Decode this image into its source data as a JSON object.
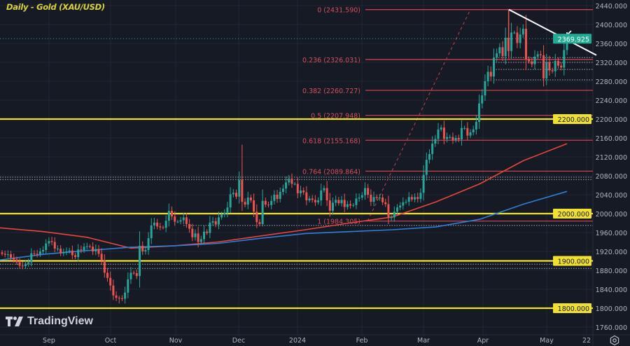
{
  "title": "Daily - Gold (XAU/USD)",
  "branding": {
    "logo_text": "TradingView"
  },
  "colors": {
    "background": "#161a25",
    "up": "#26a69a",
    "down": "#ef5350",
    "fib": "#c8404c",
    "support": "#f0e130",
    "ma_red": "#e8453c",
    "ma_blue": "#2f7fd6",
    "trendline": "#ffffff",
    "price_label": "#22ab94"
  },
  "chart_data": {
    "type": "candlestick",
    "symbol": "XAU/USD",
    "timeframe": "Daily",
    "ylim": [
      1740,
      2460
    ],
    "y_ticks": [
      "2440.000",
      "2400.000",
      "2360.000",
      "2320.000",
      "2280.000",
      "2240.000",
      "2200.000",
      "2160.000",
      "2120.000",
      "2080.000",
      "2040.000",
      "2000.000",
      "1960.000",
      "1920.000",
      "1880.000",
      "1840.000",
      "1800.000",
      "1760.000"
    ],
    "x_ticks": [
      "Sep",
      "Oct",
      "Nov",
      "Dec",
      "2024",
      "Feb",
      "Mar",
      "Apr",
      "May",
      "22"
    ],
    "closes": [
      1915,
      1913,
      1914,
      1907,
      1903,
      1897,
      1890,
      1889,
      1894,
      1897,
      1916,
      1915,
      1914,
      1920,
      1923,
      1937,
      1942,
      1940,
      1926,
      1926,
      1916,
      1919,
      1920,
      1922,
      1912,
      1908,
      1924,
      1923,
      1930,
      1931,
      1930,
      1920,
      1925,
      1915,
      1901,
      1875,
      1864,
      1848,
      1827,
      1822,
      1821,
      1820,
      1833,
      1861,
      1875,
      1874,
      1868,
      1932,
      1920,
      1923,
      1948,
      1975,
      1981,
      1973,
      1971,
      1970,
      1985,
      2006,
      1994,
      1983,
      1983,
      1986,
      1992,
      1978,
      1968,
      1950,
      1958,
      1940,
      1946,
      1962,
      1959,
      1981,
      1984,
      1977,
      1992,
      1998,
      2002,
      2013,
      2041,
      2044,
      2036,
      2071,
      2025,
      2019,
      2034,
      2028,
      2004,
      1982,
      1978,
      2027,
      2019,
      2018,
      2027,
      2040,
      2031,
      2046,
      2053,
      2066,
      2074,
      2063,
      2063,
      2043,
      2049,
      2045,
      2028,
      2032,
      2029,
      2024,
      2028,
      2049,
      2054,
      2028,
      2006,
      2023,
      2029,
      2022,
      2029,
      2014,
      2020,
      2017,
      2018,
      2032,
      2034,
      2039,
      2054,
      2040,
      2025,
      2035,
      2033,
      2034,
      2024,
      2020,
      1992,
      1992,
      2004,
      2013,
      2017,
      2024,
      2025,
      2035,
      2030,
      2035,
      2031,
      2044,
      2082,
      2114,
      2126,
      2148,
      2158,
      2178,
      2182,
      2158,
      2162,
      2162,
      2155,
      2160,
      2157,
      2181,
      2181,
      2165,
      2172,
      2178,
      2194,
      2233,
      2250,
      2280,
      2300,
      2290,
      2330,
      2339,
      2352,
      2333,
      2372,
      2344,
      2383,
      2383,
      2361,
      2379,
      2391,
      2327,
      2322,
      2316,
      2332,
      2337,
      2335,
      2286,
      2320,
      2303,
      2301,
      2323,
      2313,
      2309,
      2346,
      2369.925
    ],
    "wick_extremes": [
      {
        "index": 40,
        "low": 1810
      },
      {
        "index": 82,
        "high": 2146
      },
      {
        "index": 89,
        "low": 1973
      },
      {
        "index": 133,
        "low": 1984.305
      },
      {
        "index": 173,
        "high": 2431.59
      }
    ],
    "moving_averages": [
      {
        "color": "#e8453c",
        "values": [
          1970,
          1962,
          1950,
          1927,
          1932,
          1940,
          1953,
          1966,
          1980,
          1993,
          2025,
          2063,
          2112,
          2148
        ]
      },
      {
        "color": "#2f7fd6",
        "values": [
          1902,
          1914,
          1922,
          1929,
          1932,
          1937,
          1948,
          1958,
          1962,
          1966,
          1972,
          1988,
          2020,
          2047
        ]
      }
    ],
    "fibonacci": [
      {
        "label": "0 (2431.590)",
        "price": 2431.59
      },
      {
        "label": "0.236 (2326.031)",
        "price": 2326.031
      },
      {
        "label": "0.382 (2260.727)",
        "price": 2260.727
      },
      {
        "label": "0.5 (2207.948)",
        "price": 2207.948
      },
      {
        "label": "0.618 (2155.168)",
        "price": 2155.168
      },
      {
        "label": "0.764 (2089.864)",
        "price": 2089.864
      },
      {
        "label": "1 (1984.305)",
        "price": 1984.305
      }
    ],
    "support_levels": [
      {
        "label": "2200.000",
        "price": 2200
      },
      {
        "label": "2000.000",
        "price": 2000
      },
      {
        "label": "1900.000",
        "price": 1900
      },
      {
        "label": "1800.000",
        "price": 1800
      }
    ],
    "dotted_levels": [
      2330,
      2320,
      2305,
      2283,
      2077,
      2072,
      1975,
      1893,
      1884
    ],
    "trendline": {
      "from_price": 2431.59,
      "to_price": 2350
    },
    "last_price": {
      "label": "2369.925",
      "price": 2369.925
    }
  }
}
